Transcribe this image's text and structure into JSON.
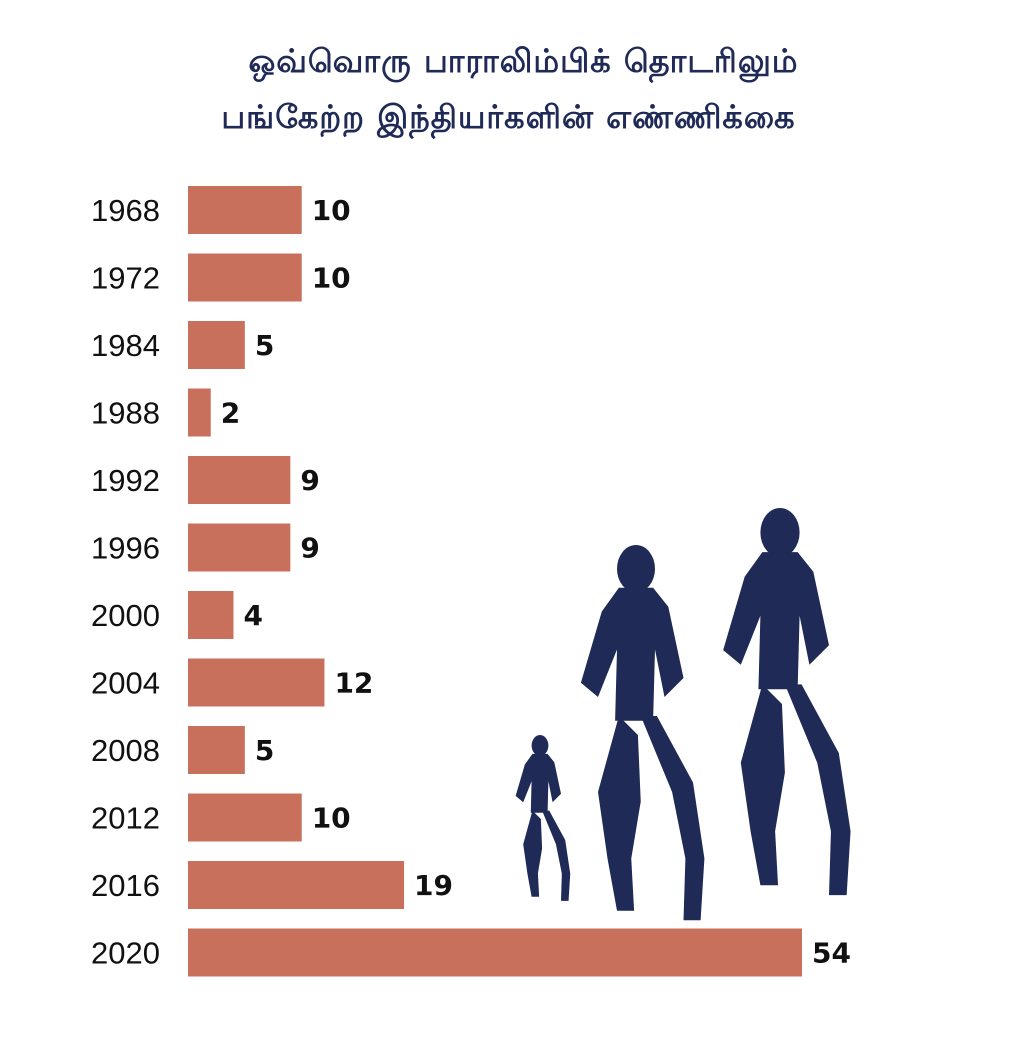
{
  "title_lines": [
    "ஒவ்வொரு பாராலிம்பிக் தொடரிலும்",
    "பங்கேற்ற இந்தியர்களின் எண்ணிக்கை"
  ],
  "colors": {
    "bar": "#c8705c",
    "silhouette": "#1f2a56",
    "text": "#111111"
  },
  "icons": [
    "runner-silhouette-small-icon",
    "runner-silhouette-medium-icon",
    "runner-silhouette-large-icon"
  ],
  "chart_data": {
    "type": "bar",
    "orientation": "horizontal",
    "title": "ஒவ்வொரு பாராலிம்பிக் தொடரிலும் பங்கேற்ற இந்தியர்களின் எண்ணிக்கை",
    "categories": [
      "1968",
      "1972",
      "1984",
      "1988",
      "1992",
      "1996",
      "2000",
      "2004",
      "2008",
      "2012",
      "2016",
      "2020"
    ],
    "values": [
      10,
      10,
      5,
      2,
      9,
      9,
      4,
      12,
      5,
      10,
      19,
      54
    ],
    "xlim": [
      0,
      54
    ],
    "grid": false,
    "data_labels": true
  }
}
